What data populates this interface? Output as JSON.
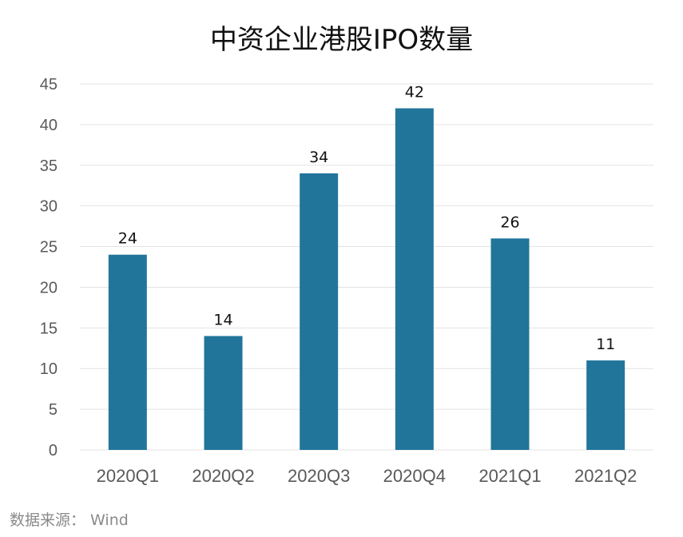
{
  "chart_data": {
    "type": "bar",
    "title": "中资企业港股IPO数量",
    "categories": [
      "2020Q1",
      "2020Q2",
      "2020Q3",
      "2020Q4",
      "2021Q1",
      "2021Q2"
    ],
    "values": [
      24,
      14,
      34,
      42,
      26,
      11
    ],
    "ylim": [
      0,
      45
    ],
    "yticks": [
      0,
      5,
      10,
      15,
      20,
      25,
      30,
      35,
      40,
      45
    ],
    "xlabel": "",
    "ylabel": "",
    "grid": true,
    "legend": "none",
    "bar_color": "#21759B",
    "grid_color": "#E3E3E3"
  },
  "source": "数据来源： Wind"
}
